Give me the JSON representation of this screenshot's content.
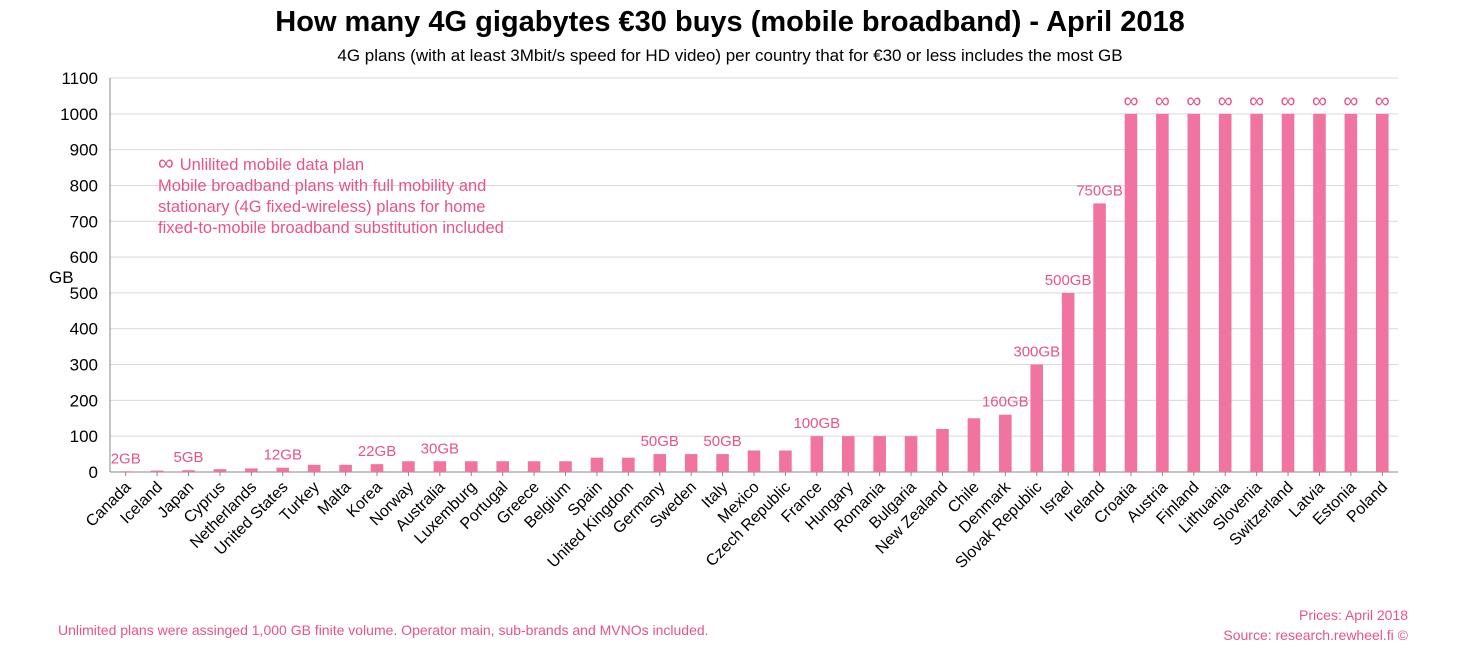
{
  "title": "How many 4G gigabytes €30 buys (mobile broadband) - April 2018",
  "subtitle": "4G plans (with at least 3Mbit/s speed for HD video) per country that for €30 or less includes the most GB",
  "legend": {
    "symbol": "∞",
    "symbol_label": "Unlilited mobile data plan",
    "lines": [
      "Mobile broadband plans with full mobility and",
      "stationary (4G fixed-wireless) plans for home",
      "fixed-to-mobile broadband substitution included"
    ]
  },
  "footnote_left": "Unlimited plans were assinged 1,000 GB finite volume. Operator main, sub-brands and MVNOs included.",
  "footnote_right": {
    "prices": "Prices: April 2018",
    "source": "Source: research.rewheel.fi ©"
  },
  "chart_data": {
    "type": "bar",
    "ylabel": "GB",
    "xlabel": "",
    "ylim": [
      0,
      1100
    ],
    "yticks": [
      0,
      100,
      200,
      300,
      400,
      500,
      600,
      700,
      800,
      900,
      1000,
      1100
    ],
    "grid": true,
    "bar_color": "#f0749f",
    "label_color": "#e8538a",
    "categories": [
      "Canada",
      "Iceland",
      "Japan",
      "Cyprus",
      "Netherlands",
      "United States",
      "Turkey",
      "Malta",
      "Korea",
      "Norway",
      "Australia",
      "Luxemburg",
      "Portugal",
      "Greece",
      "Belgium",
      "Spain",
      "United Kingdom",
      "Germany",
      "Sweden",
      "Italy",
      "Mexico",
      "Czech Republic",
      "France",
      "Hungary",
      "Romania",
      "Bulgaria",
      "New Zealand",
      "Chile",
      "Denmark",
      "Slovak Republic",
      "Israel",
      "Ireland",
      "Croatia",
      "Austria",
      "Finland",
      "Lithuania",
      "Slovenia",
      "Switzerland",
      "Latvia",
      "Estonia",
      "Poland"
    ],
    "values": [
      2,
      4,
      5,
      8,
      10,
      12,
      20,
      20,
      22,
      30,
      30,
      30,
      30,
      30,
      30,
      40,
      40,
      50,
      50,
      50,
      60,
      60,
      100,
      100,
      100,
      100,
      120,
      150,
      160,
      300,
      500,
      750,
      1000,
      1000,
      1000,
      1000,
      1000,
      1000,
      1000,
      1000,
      1000
    ],
    "data_labels": [
      {
        "index": 0,
        "text": "2GB"
      },
      {
        "index": 2,
        "text": "5GB"
      },
      {
        "index": 5,
        "text": "12GB"
      },
      {
        "index": 8,
        "text": "22GB"
      },
      {
        "index": 10,
        "text": "30GB"
      },
      {
        "index": 17,
        "text": "50GB"
      },
      {
        "index": 19,
        "text": "50GB"
      },
      {
        "index": 22,
        "text": "100GB"
      },
      {
        "index": 28,
        "text": "160GB"
      },
      {
        "index": 29,
        "text": "300GB"
      },
      {
        "index": 30,
        "text": "500GB"
      },
      {
        "index": 31,
        "text": "750GB"
      }
    ],
    "unlimited": [
      false,
      false,
      false,
      false,
      false,
      false,
      false,
      false,
      false,
      false,
      false,
      false,
      false,
      false,
      false,
      false,
      false,
      false,
      false,
      false,
      false,
      false,
      false,
      false,
      false,
      false,
      false,
      false,
      false,
      false,
      false,
      false,
      true,
      true,
      true,
      true,
      true,
      true,
      true,
      true,
      true
    ]
  }
}
